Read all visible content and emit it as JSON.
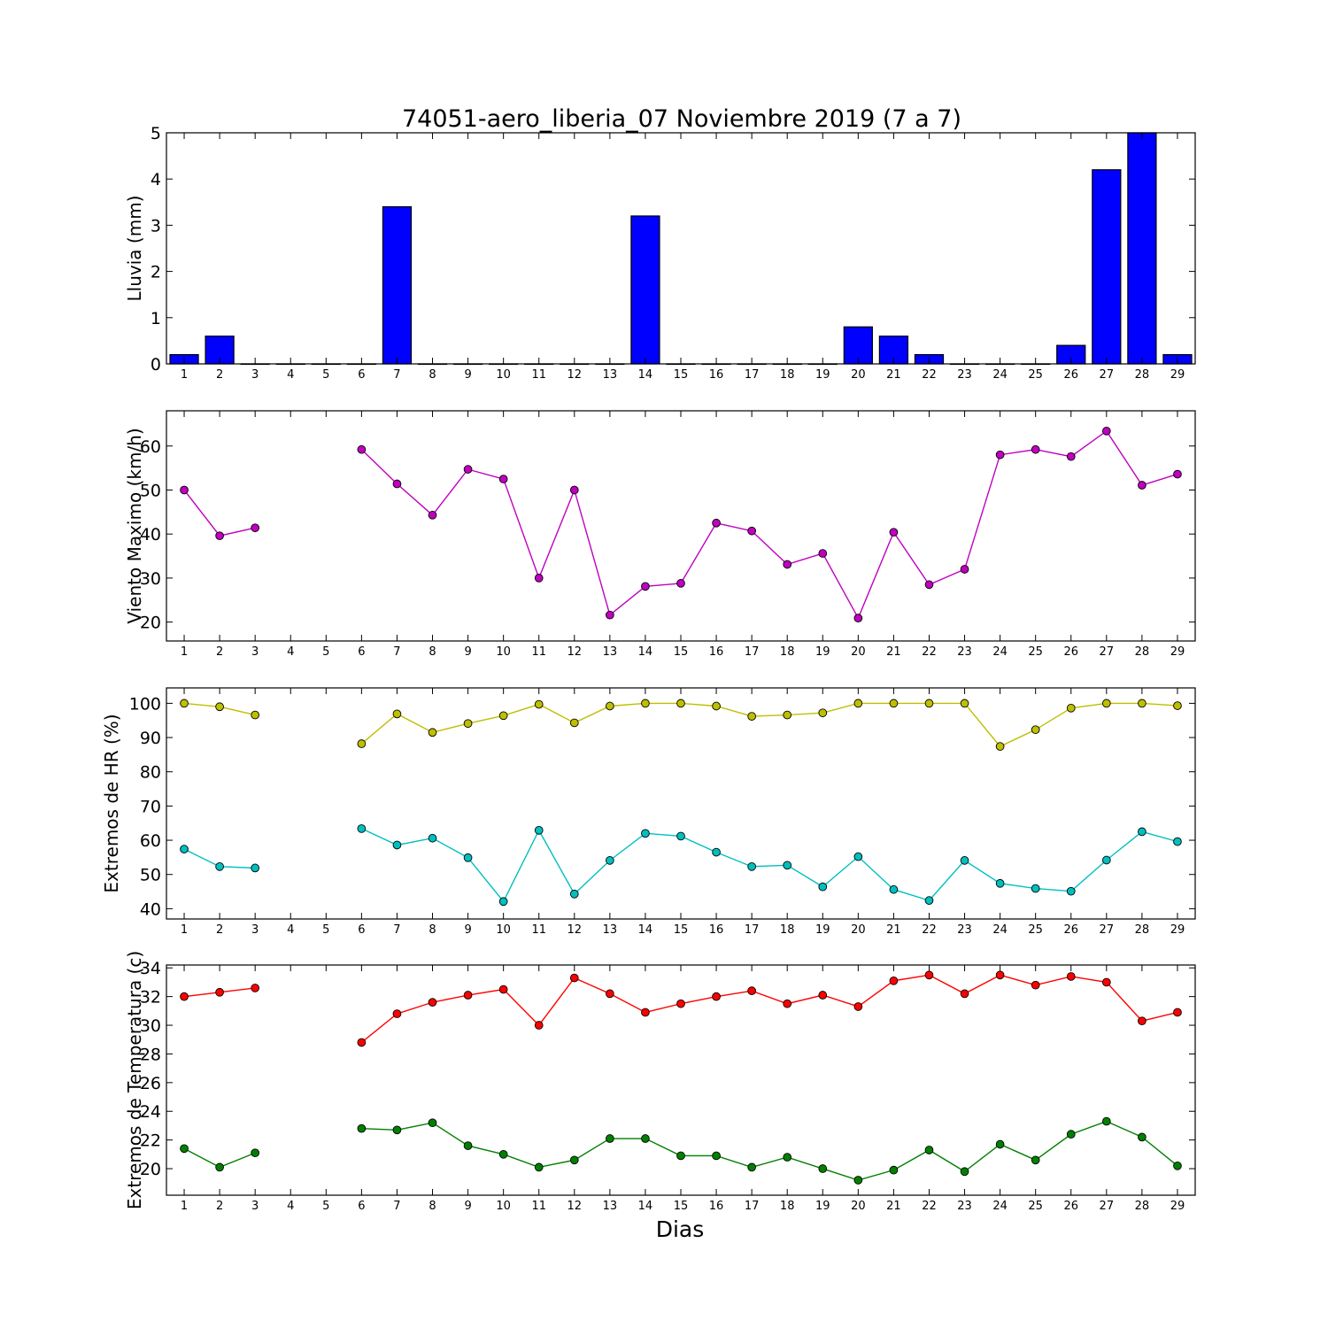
{
  "title": "74051-aero_liberia_07 Noviembre 2019  (7 a 7)",
  "xlabel": "Dias",
  "chart_data": [
    {
      "type": "bar",
      "ylabel": "Lluvia (mm)",
      "x": [
        1,
        2,
        3,
        4,
        5,
        6,
        7,
        8,
        9,
        10,
        11,
        12,
        13,
        14,
        15,
        16,
        17,
        18,
        19,
        20,
        21,
        22,
        23,
        24,
        25,
        26,
        27,
        28,
        29
      ],
      "xlim": [
        0.5,
        29.5
      ],
      "ylim": [
        0,
        5
      ],
      "yticks": [
        0,
        1,
        2,
        3,
        4,
        5
      ],
      "series": [
        {
          "color": "#0000ff",
          "values": [
            0.2,
            0.6,
            0,
            0,
            0,
            0,
            3.4,
            0,
            0,
            0,
            0,
            0,
            0,
            3.2,
            0,
            0,
            0,
            0,
            0,
            0.8,
            0.6,
            0.2,
            0,
            0,
            0,
            0.4,
            4.2,
            5.0,
            0.2
          ]
        }
      ]
    },
    {
      "type": "line",
      "ylabel": "Viento Maximo (km/h)",
      "x": [
        1,
        2,
        3,
        4,
        5,
        6,
        7,
        8,
        9,
        10,
        11,
        12,
        13,
        14,
        15,
        16,
        17,
        18,
        19,
        20,
        21,
        22,
        23,
        24,
        25,
        26,
        27,
        28,
        29
      ],
      "xlim": [
        0.5,
        29.5
      ],
      "ylim": [
        15.7,
        68
      ],
      "yticks": [
        20,
        30,
        40,
        50,
        60
      ],
      "series": [
        {
          "color": "#bf00bf",
          "values": [
            50,
            39.6,
            41.4,
            null,
            null,
            59.2,
            51.4,
            44.3,
            54.7,
            52.5,
            30,
            50,
            21.6,
            28.1,
            28.8,
            42.5,
            40.7,
            33.1,
            35.6,
            20.9,
            40.4,
            28.5,
            32,
            58,
            59.2,
            57.6,
            63.4,
            51.1,
            53.6
          ]
        }
      ]
    },
    {
      "type": "line",
      "ylabel": "Extremos de HR (%)",
      "x": [
        1,
        2,
        3,
        4,
        5,
        6,
        7,
        8,
        9,
        10,
        11,
        12,
        13,
        14,
        15,
        16,
        17,
        18,
        19,
        20,
        21,
        22,
        23,
        24,
        25,
        26,
        27,
        28,
        29
      ],
      "xlim": [
        0.5,
        29.5
      ],
      "ylim": [
        37,
        104.5
      ],
      "yticks": [
        40,
        50,
        60,
        70,
        80,
        90,
        100
      ],
      "series": [
        {
          "color": "#bfbf00",
          "values": [
            100,
            99,
            96.6,
            null,
            null,
            88.2,
            96.9,
            91.5,
            94.1,
            96.4,
            99.7,
            94.3,
            99.2,
            100,
            100,
            99.2,
            96.2,
            96.6,
            97.2,
            100,
            100,
            100,
            100,
            87.4,
            92.3,
            98.6,
            100,
            100,
            99.3
          ]
        },
        {
          "color": "#00bfbf",
          "values": [
            57.4,
            52.3,
            51.9,
            null,
            null,
            63.4,
            58.6,
            60.6,
            54.9,
            42.1,
            62.9,
            44.3,
            54.1,
            62,
            61.2,
            56.5,
            52.3,
            52.7,
            46.4,
            55.2,
            45.6,
            42.4,
            54.1,
            47.4,
            45.9,
            45.1,
            54.2,
            62.5,
            59.6
          ]
        }
      ]
    },
    {
      "type": "line",
      "ylabel": "Extremos de Temperatura (c)",
      "x": [
        1,
        2,
        3,
        4,
        5,
        6,
        7,
        8,
        9,
        10,
        11,
        12,
        13,
        14,
        15,
        16,
        17,
        18,
        19,
        20,
        21,
        22,
        23,
        24,
        25,
        26,
        27,
        28,
        29
      ],
      "xlim": [
        0.5,
        29.5
      ],
      "ylim": [
        18.15,
        34.2
      ],
      "yticks": [
        20,
        22,
        24,
        26,
        28,
        30,
        32,
        34
      ],
      "series": [
        {
          "color": "#ff0000",
          "values": [
            32,
            32.3,
            32.6,
            null,
            null,
            28.8,
            30.8,
            31.6,
            32.1,
            32.5,
            30,
            33.3,
            32.2,
            30.9,
            31.5,
            32,
            32.4,
            31.5,
            32.1,
            31.3,
            33.1,
            33.5,
            32.2,
            33.5,
            32.8,
            33.4,
            33,
            30.3,
            30.9
          ]
        },
        {
          "color": "#008000",
          "values": [
            21.4,
            20.1,
            21.1,
            null,
            null,
            22.8,
            22.7,
            23.2,
            21.6,
            21,
            20.1,
            20.6,
            22.1,
            22.1,
            20.9,
            20.9,
            20.1,
            20.8,
            20,
            19.2,
            19.9,
            21.3,
            19.8,
            21.7,
            20.6,
            22.4,
            23.3,
            22.2,
            20.2
          ]
        }
      ]
    }
  ]
}
